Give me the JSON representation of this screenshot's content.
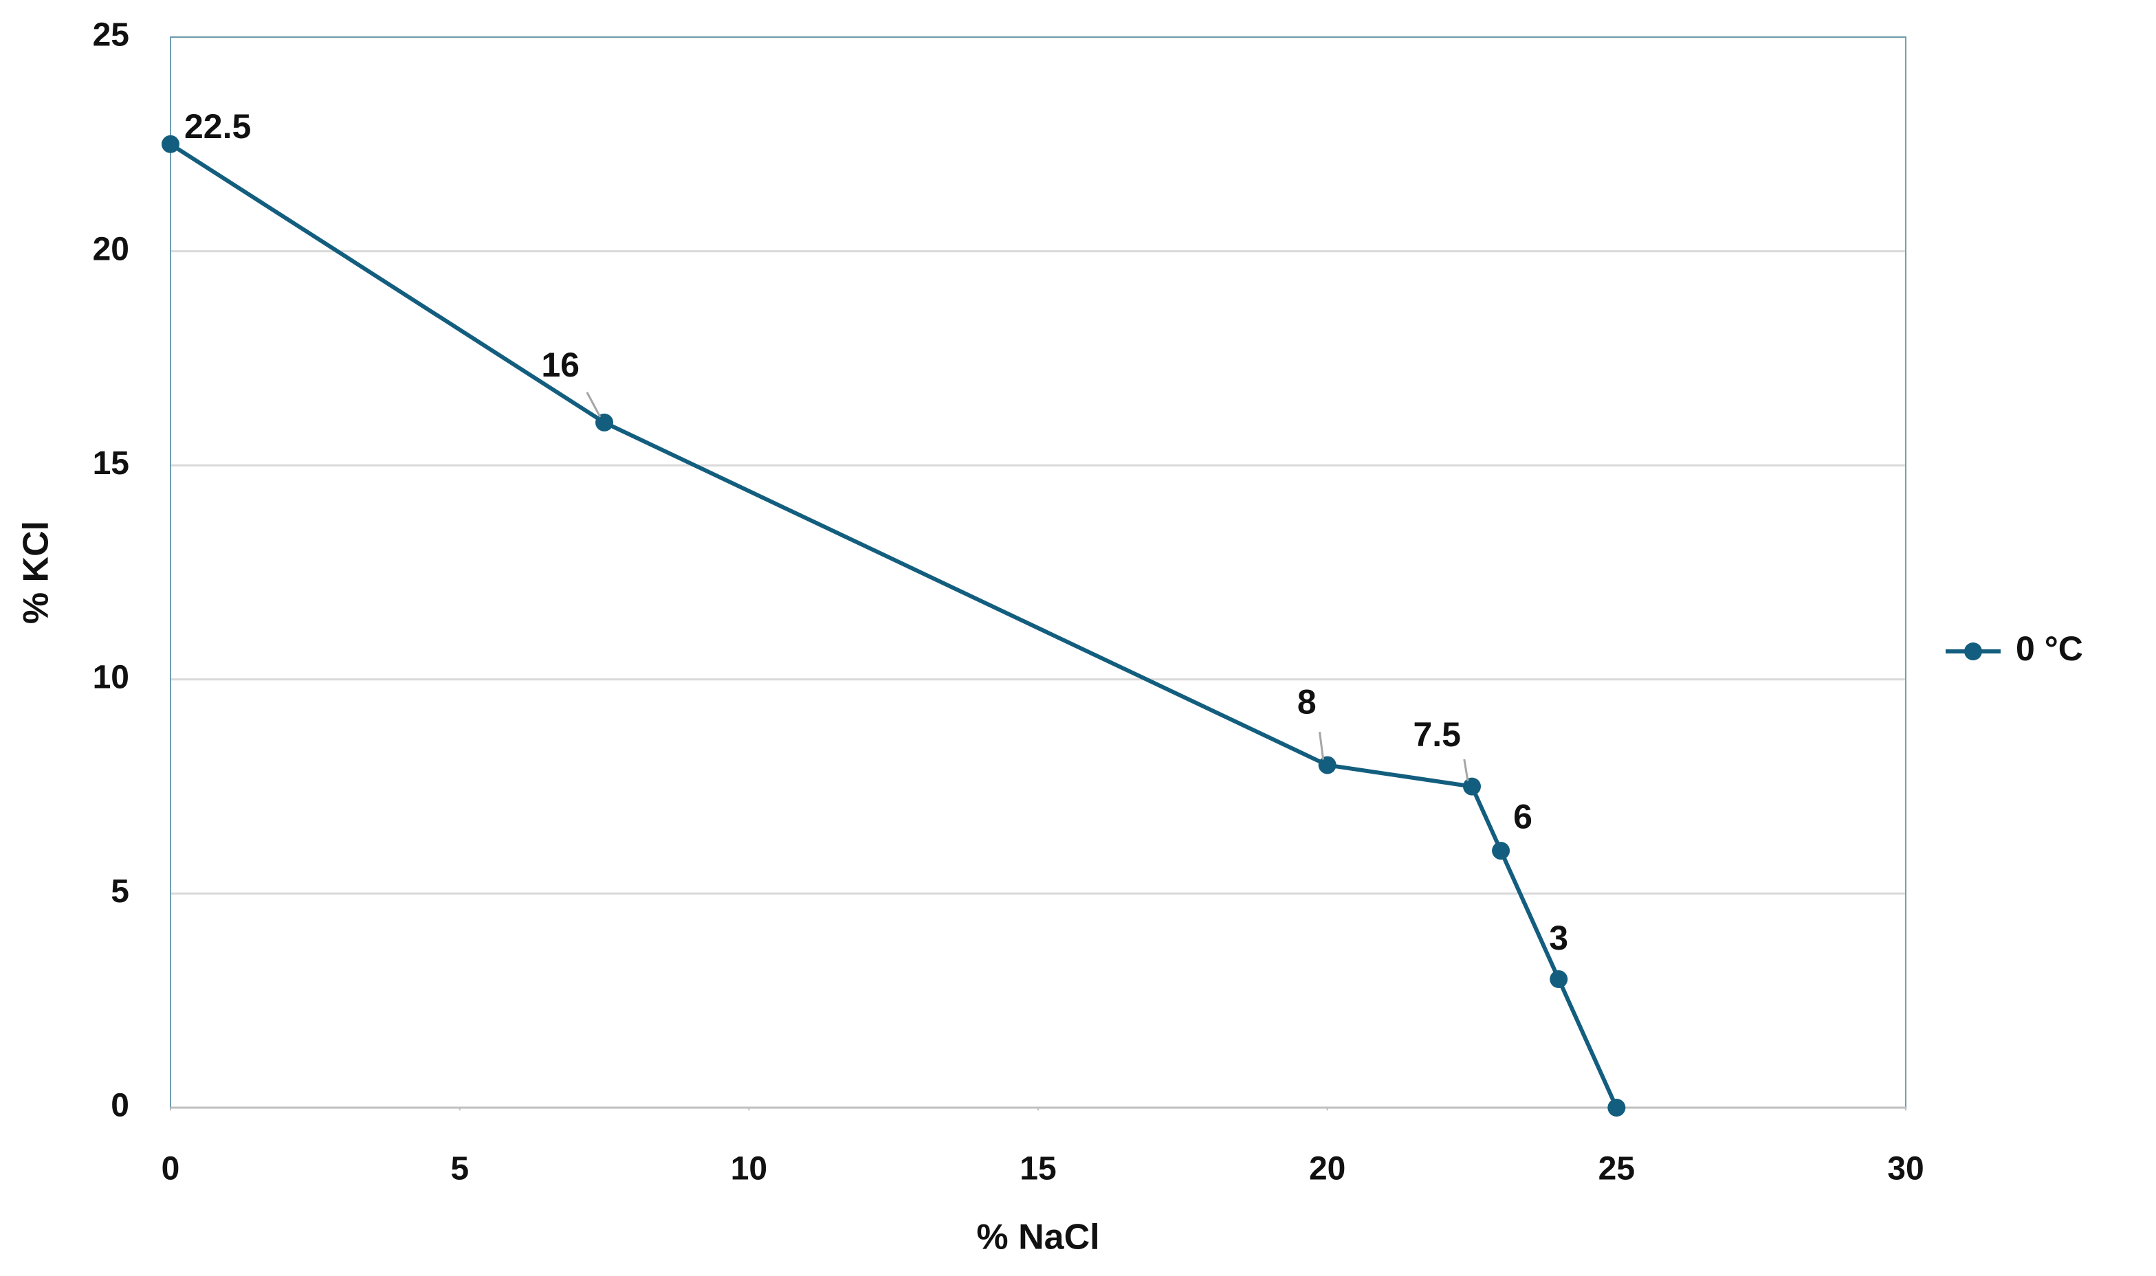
{
  "chart_data": {
    "type": "line",
    "x_label": "% NaCl",
    "y_label": "% KCl",
    "x": [
      0,
      7.5,
      20,
      22.5,
      23,
      24,
      25
    ],
    "series": [
      {
        "name": "0 °C",
        "color": "#135e7e",
        "values": [
          22.5,
          16,
          8,
          7.5,
          6,
          3,
          0
        ],
        "value_labels": [
          "22.5",
          "16",
          "8",
          "7.5",
          "6",
          "3",
          null
        ]
      }
    ],
    "xlim": [
      0,
      30
    ],
    "xticks": [
      0,
      5,
      10,
      15,
      20,
      25,
      30
    ],
    "ylim": [
      0,
      25
    ],
    "yticks": [
      0,
      5,
      10,
      15,
      20,
      25
    ],
    "grid": true,
    "legend": "right"
  }
}
